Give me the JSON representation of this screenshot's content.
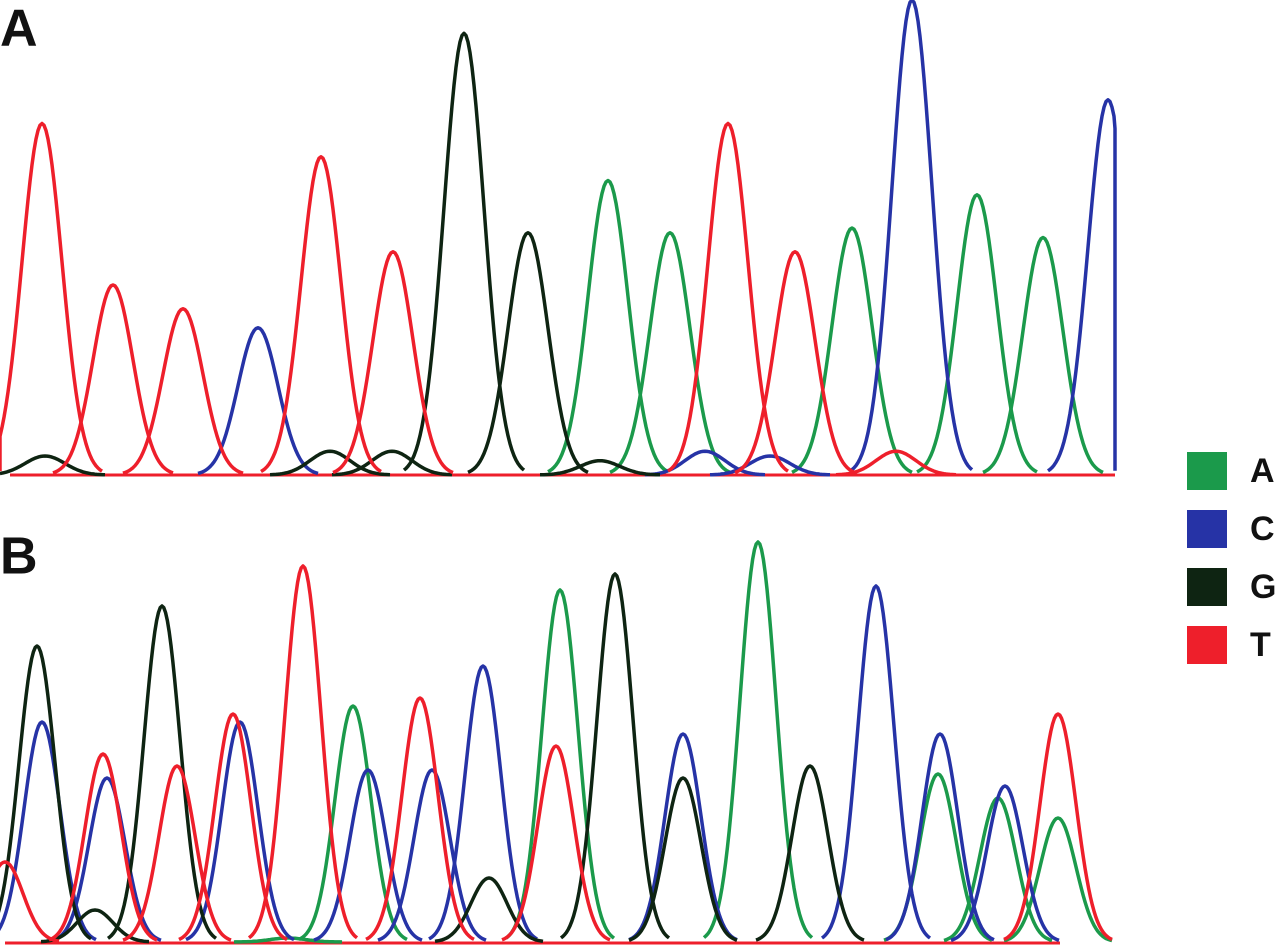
{
  "chart_data": [
    {
      "type": "chromatogram",
      "title": "A",
      "xlim": [
        0,
        1100
      ],
      "ylim": [
        0,
        100
      ],
      "sigma": 20,
      "series": [
        {
          "name": "A",
          "color": "#1b9a4b",
          "peaks": [
            {
              "x": 598,
              "height": 62
            },
            {
              "x": 660,
              "height": 51
            },
            {
              "x": 842,
              "height": 52
            },
            {
              "x": 967,
              "height": 59
            },
            {
              "x": 1033,
              "height": 50
            }
          ]
        },
        {
          "name": "C",
          "color": "#2633a6",
          "peaks": [
            {
              "x": 248,
              "height": 31
            },
            {
              "x": 695,
              "height": 5
            },
            {
              "x": 760,
              "height": 4
            },
            {
              "x": 902,
              "height": 100
            },
            {
              "x": 1098,
              "height": 79
            }
          ]
        },
        {
          "name": "G",
          "color": "#0e2412",
          "peaks": [
            {
              "x": 35,
              "height": 4
            },
            {
              "x": 320,
              "height": 5
            },
            {
              "x": 382,
              "height": 5
            },
            {
              "x": 454,
              "height": 93
            },
            {
              "x": 518,
              "height": 51
            },
            {
              "x": 590,
              "height": 3
            }
          ]
        },
        {
          "name": "T",
          "color": "#ee1f2b",
          "peaks": [
            {
              "x": 32,
              "height": 74
            },
            {
              "x": 103,
              "height": 40
            },
            {
              "x": 173,
              "height": 35
            },
            {
              "x": 311,
              "height": 67
            },
            {
              "x": 383,
              "height": 47
            },
            {
              "x": 718,
              "height": 74
            },
            {
              "x": 785,
              "height": 47
            },
            {
              "x": 886,
              "height": 5
            }
          ]
        }
      ]
    },
    {
      "type": "chromatogram",
      "title": "B",
      "xlim": [
        0,
        1100
      ],
      "ylim": [
        0,
        100
      ],
      "sigma": 18,
      "series": [
        {
          "name": "A",
          "color": "#1b9a4b",
          "peaks": [
            {
              "x": 283,
              "height": 1
            },
            {
              "x": 348,
              "height": 59
            },
            {
              "x": 555,
              "height": 88
            },
            {
              "x": 753,
              "height": 100
            },
            {
              "x": 933,
              "height": 42
            },
            {
              "x": 993,
              "height": 36
            },
            {
              "x": 1053,
              "height": 31
            }
          ]
        },
        {
          "name": "C",
          "color": "#2633a6",
          "peaks": [
            {
              "x": 37,
              "height": 55
            },
            {
              "x": 102,
              "height": 41
            },
            {
              "x": 235,
              "height": 55
            },
            {
              "x": 363,
              "height": 43
            },
            {
              "x": 427,
              "height": 43
            },
            {
              "x": 478,
              "height": 69
            },
            {
              "x": 678,
              "height": 52
            },
            {
              "x": 871,
              "height": 89
            },
            {
              "x": 935,
              "height": 52
            },
            {
              "x": 1000,
              "height": 39
            }
          ]
        },
        {
          "name": "G",
          "color": "#0e2412",
          "peaks": [
            {
              "x": 32,
              "height": 74
            },
            {
              "x": 90,
              "height": 8
            },
            {
              "x": 157,
              "height": 84
            },
            {
              "x": 484,
              "height": 16
            },
            {
              "x": 610,
              "height": 92
            },
            {
              "x": 678,
              "height": 41
            },
            {
              "x": 805,
              "height": 44
            }
          ]
        },
        {
          "name": "T",
          "color": "#ee1f2b",
          "peaks": [
            {
              "x": 0,
              "height": 20
            },
            {
              "x": 98,
              "height": 47
            },
            {
              "x": 172,
              "height": 44
            },
            {
              "x": 228,
              "height": 57
            },
            {
              "x": 298,
              "height": 94
            },
            {
              "x": 415,
              "height": 61
            },
            {
              "x": 551,
              "height": 49
            },
            {
              "x": 1053,
              "height": 57
            }
          ]
        }
      ]
    }
  ]
}
